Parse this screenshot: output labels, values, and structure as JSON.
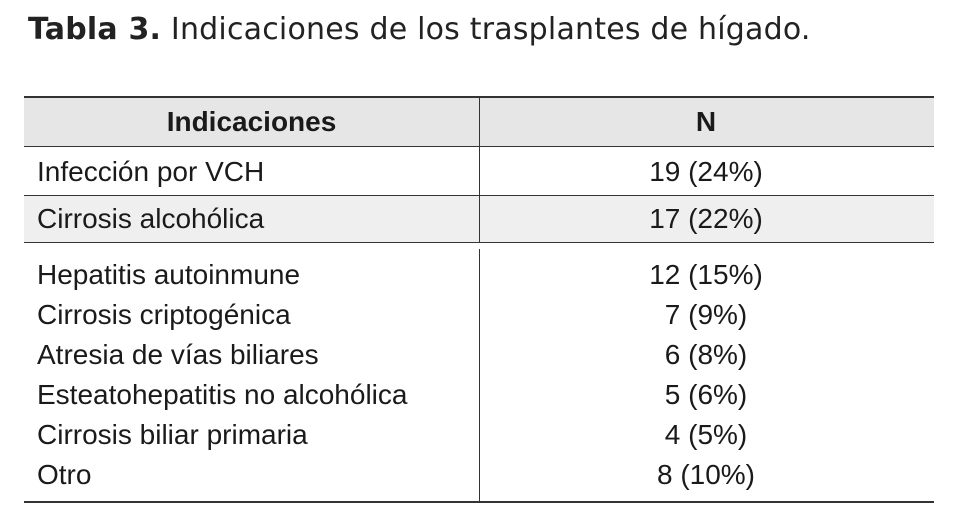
{
  "caption": {
    "label": "Tabla 3.",
    "title": "Indicaciones de los trasplantes de hígado."
  },
  "table": {
    "headers": [
      "Indicaciones",
      "N"
    ],
    "rows": [
      {
        "indicacion": "Infección por VCH",
        "n": "19 (24%)"
      },
      {
        "indicacion": "Cirrosis alcohólica",
        "n": "17 (22%)"
      },
      {
        "indicacion": "Hepatitis autoinmune",
        "n": "12 (15%)"
      },
      {
        "indicacion": "Cirrosis criptogénica",
        "n": "7 (9%)"
      },
      {
        "indicacion": "Atresia de vías biliares",
        "n": "6 (8%)"
      },
      {
        "indicacion": "Esteatohepatitis no alcohólica",
        "n": "5 (6%)"
      },
      {
        "indicacion": "Cirrosis biliar primaria",
        "n": "4 (5%)"
      },
      {
        "indicacion": "Otro",
        "n": "8 (10%)"
      }
    ]
  }
}
